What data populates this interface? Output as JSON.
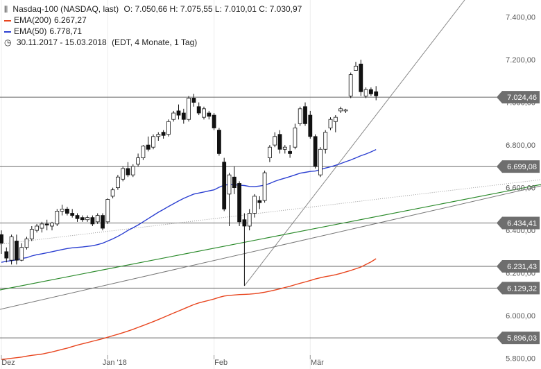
{
  "header": {
    "title": "Nasdaq-100 (NASDAQ, last)",
    "ohlc": "O: 7.050,66  H: 7.075,55  L: 7.010,01  C: 7.030,97",
    "ema200_label": "EMA(200)",
    "ema200_value": "6.267,27",
    "ema50_label": "EMA(50)",
    "ema50_value": "6.778,71",
    "period": "30.11.2017 - 15.03.2018",
    "period_detail": "(EDT, 4 Monate, 1 Tag)"
  },
  "colors": {
    "ema200": "#e8451e",
    "ema50": "#2b3fd1",
    "trend_green": "#2a8a2a",
    "trend_gray": "#777777",
    "tag_bg": "#6e6e6e"
  },
  "chart_data": {
    "type": "candlestick",
    "ylim": [
      5750,
      7480
    ],
    "y_ticks": [
      "7.400,00",
      "7.200,00",
      "7.000,00",
      "6.800,00",
      "6.600,00",
      "6.400,00",
      "6.200,00",
      "6.000,00",
      "5.800,00"
    ],
    "y_tick_values": [
      7400,
      7200,
      7000,
      6800,
      6600,
      6400,
      6200,
      6000,
      5800
    ],
    "x_labels": [
      {
        "label": "Dez",
        "index": 0
      },
      {
        "label": "Jan '18",
        "index": 21
      },
      {
        "label": "Feb",
        "index": 42
      },
      {
        "label": "Mär",
        "index": 61
      }
    ],
    "horizontal_levels": [
      {
        "value": 7024.46,
        "label": "7.024,46"
      },
      {
        "value": 6699.08,
        "label": "6.699,08"
      },
      {
        "value": 6434.41,
        "label": "6.434,41"
      },
      {
        "value": 6231.43,
        "label": "6.231,43"
      },
      {
        "value": 6129.32,
        "label": "6.129,32"
      },
      {
        "value": 5896.03,
        "label": "5.896,03"
      }
    ],
    "candles": [
      [
        6380,
        6400,
        6290,
        6340
      ],
      [
        6300,
        6320,
        6250,
        6270
      ],
      [
        6260,
        6380,
        6240,
        6370
      ],
      [
        6350,
        6380,
        6240,
        6260
      ],
      [
        6260,
        6340,
        6255,
        6320
      ],
      [
        6320,
        6370,
        6310,
        6360
      ],
      [
        6360,
        6420,
        6350,
        6405
      ],
      [
        6400,
        6430,
        6390,
        6420
      ],
      [
        6410,
        6440,
        6390,
        6430
      ],
      [
        6430,
        6450,
        6400,
        6425
      ],
      [
        6420,
        6440,
        6400,
        6435
      ],
      [
        6430,
        6500,
        6420,
        6490
      ],
      [
        6490,
        6520,
        6470,
        6500
      ],
      [
        6500,
        6510,
        6470,
        6480
      ],
      [
        6480,
        6500,
        6460,
        6470
      ],
      [
        6470,
        6480,
        6440,
        6455
      ],
      [
        6460,
        6470,
        6440,
        6450
      ],
      [
        6450,
        6470,
        6440,
        6460
      ],
      [
        6460,
        6470,
        6420,
        6430
      ],
      [
        6440,
        6480,
        6430,
        6470
      ],
      [
        6470,
        6480,
        6400,
        6410
      ],
      [
        6440,
        6550,
        6430,
        6545
      ],
      [
        6560,
        6600,
        6550,
        6590
      ],
      [
        6600,
        6660,
        6590,
        6650
      ],
      [
        6640,
        6700,
        6630,
        6690
      ],
      [
        6690,
        6720,
        6650,
        6660
      ],
      [
        6660,
        6710,
        6650,
        6700
      ],
      [
        6710,
        6760,
        6700,
        6740
      ],
      [
        6740,
        6800,
        6730,
        6795
      ],
      [
        6800,
        6840,
        6770,
        6780
      ],
      [
        6790,
        6850,
        6780,
        6840
      ],
      [
        6840,
        6860,
        6820,
        6850
      ],
      [
        6860,
        6870,
        6830,
        6845
      ],
      [
        6850,
        6920,
        6840,
        6910
      ],
      [
        6920,
        6960,
        6910,
        6950
      ],
      [
        6960,
        6990,
        6920,
        6940
      ],
      [
        6950,
        6970,
        6900,
        6920
      ],
      [
        6920,
        7030,
        6910,
        7020
      ],
      [
        7020,
        7040,
        6980,
        7000
      ],
      [
        6980,
        7000,
        6940,
        6950
      ],
      [
        6930,
        6980,
        6920,
        6970
      ],
      [
        6950,
        6960,
        6920,
        6935
      ],
      [
        6940,
        6950,
        6870,
        6880
      ],
      [
        6870,
        6880,
        6750,
        6760
      ],
      [
        6720,
        6740,
        6490,
        6500
      ],
      [
        6570,
        6670,
        6420,
        6660
      ],
      [
        6650,
        6700,
        6570,
        6600
      ],
      [
        6620,
        6630,
        6420,
        6440
      ],
      [
        6450,
        6480,
        6140,
        6420
      ],
      [
        6420,
        6500,
        6400,
        6480
      ],
      [
        6480,
        6570,
        6460,
        6560
      ],
      [
        6540,
        6560,
        6500,
        6530
      ],
      [
        6540,
        6680,
        6530,
        6670
      ],
      [
        6740,
        6800,
        6720,
        6790
      ],
      [
        6800,
        6860,
        6790,
        6840
      ],
      [
        6850,
        6870,
        6760,
        6780
      ],
      [
        6780,
        6800,
        6760,
        6790
      ],
      [
        6770,
        6800,
        6740,
        6760
      ],
      [
        6790,
        6900,
        6780,
        6880
      ],
      [
        6900,
        6980,
        6890,
        6970
      ],
      [
        6980,
        7000,
        6890,
        6900
      ],
      [
        6940,
        6960,
        6830,
        6840
      ],
      [
        6840,
        6850,
        6690,
        6700
      ],
      [
        6660,
        6790,
        6650,
        6780
      ],
      [
        6780,
        6870,
        6760,
        6860
      ],
      [
        6880,
        6930,
        6870,
        6920
      ],
      [
        6910,
        6940,
        6860,
        6930
      ],
      [
        6960,
        6980,
        6950,
        6970
      ],
      [
        6960,
        6970,
        6950,
        6965
      ],
      [
        7030,
        7140,
        7020,
        7130
      ],
      [
        7150,
        7190,
        7150,
        7170
      ],
      [
        7180,
        7200,
        7030,
        7050
      ],
      [
        7030,
        7070,
        7020,
        7060
      ],
      [
        7060,
        7070,
        7030,
        7040
      ],
      [
        7050,
        7076,
        7010,
        7031
      ]
    ],
    "ema50": [
      6250,
      6255,
      6258,
      6262,
      6268,
      6272,
      6280,
      6286,
      6290,
      6295,
      6300,
      6305,
      6310,
      6315,
      6318,
      6320,
      6322,
      6325,
      6328,
      6333,
      6340,
      6350,
      6360,
      6372,
      6385,
      6400,
      6412,
      6425,
      6440,
      6455,
      6470,
      6485,
      6498,
      6512,
      6525,
      6538,
      6550,
      6560,
      6570,
      6575,
      6580,
      6585,
      6590,
      6602,
      6612,
      6615,
      6614,
      6612,
      6610,
      6606,
      6605,
      6608,
      6612,
      6620,
      6630,
      6638,
      6645,
      6652,
      6660,
      6668,
      6672,
      6676,
      6678,
      6685,
      6692,
      6698,
      6705,
      6713,
      6722,
      6730,
      6740,
      6750,
      6758,
      6768,
      6779
    ],
    "ema200": [
      5795,
      5797,
      5800,
      5803,
      5806,
      5810,
      5814,
      5817,
      5820,
      5825,
      5830,
      5836,
      5842,
      5848,
      5855,
      5862,
      5868,
      5874,
      5880,
      5886,
      5892,
      5899,
      5906,
      5913,
      5920,
      5928,
      5936,
      5945,
      5954,
      5963,
      5972,
      5982,
      5992,
      6002,
      6012,
      6022,
      6032,
      6042,
      6052,
      6060,
      6066,
      6072,
      6078,
      6086,
      6092,
      6095,
      6097,
      6099,
      6100,
      6101,
      6103,
      6106,
      6110,
      6115,
      6120,
      6126,
      6132,
      6138,
      6145,
      6152,
      6158,
      6165,
      6172,
      6178,
      6183,
      6187,
      6192,
      6198,
      6205,
      6212,
      6220,
      6228,
      6240,
      6252,
      6267
    ]
  }
}
